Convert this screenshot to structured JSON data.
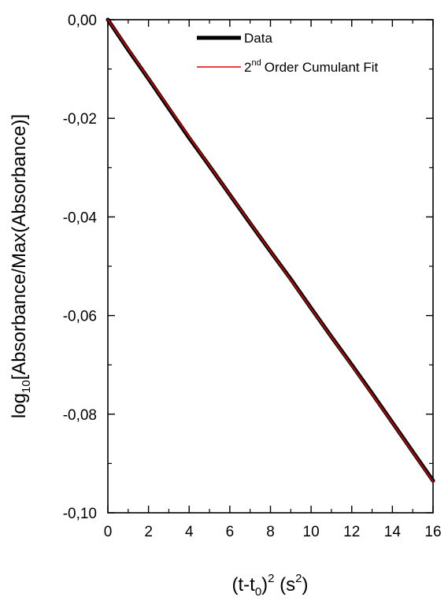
{
  "chart_data": {
    "type": "line",
    "xlabel": {
      "main": "(t-t",
      "sub": "0",
      "mid": ")",
      "sup": "2",
      "unit_open": " (s",
      "unit_sup": "2",
      "unit_close": ")"
    },
    "ylabel": {
      "main": "log",
      "sub": "10",
      "rest": "[Absorbance/Max(Absorbance)]"
    },
    "xlim": [
      0,
      16
    ],
    "ylim": [
      -0.1,
      0.0
    ],
    "x_ticks": [
      0,
      2,
      4,
      6,
      8,
      10,
      12,
      14,
      16
    ],
    "x_tick_labels": [
      "0",
      "2",
      "4",
      "6",
      "8",
      "10",
      "12",
      "14",
      "16"
    ],
    "y_ticks": [
      0.0,
      -0.02,
      -0.04,
      -0.06,
      -0.08,
      -0.1
    ],
    "y_tick_labels": [
      "0,00",
      "-0,02",
      "-0,04",
      "-0,06",
      "-0,08",
      "-0,10"
    ],
    "grid": false,
    "legend_position": "top-right",
    "series": [
      {
        "name": "Data",
        "color": "#000000",
        "x": [
          0,
          1,
          2,
          3,
          4,
          5,
          6,
          7,
          8,
          9,
          10,
          11,
          12,
          13,
          14,
          15,
          16
        ],
        "values": [
          0.0,
          -0.0061,
          -0.012,
          -0.018,
          -0.024,
          -0.0297,
          -0.0355,
          -0.0413,
          -0.047,
          -0.0526,
          -0.0585,
          -0.0643,
          -0.07,
          -0.0758,
          -0.0817,
          -0.0876,
          -0.0935
        ]
      },
      {
        "name": "Order Cumulant Fit",
        "name_prefix": "2",
        "name_sup": "nd",
        "color": "#e00000",
        "x": [
          0,
          2,
          4,
          6,
          8,
          10,
          12,
          14,
          16
        ],
        "values": [
          0.0,
          -0.0119,
          -0.0238,
          -0.0355,
          -0.047,
          -0.0586,
          -0.0702,
          -0.0818,
          -0.0937
        ]
      }
    ]
  }
}
